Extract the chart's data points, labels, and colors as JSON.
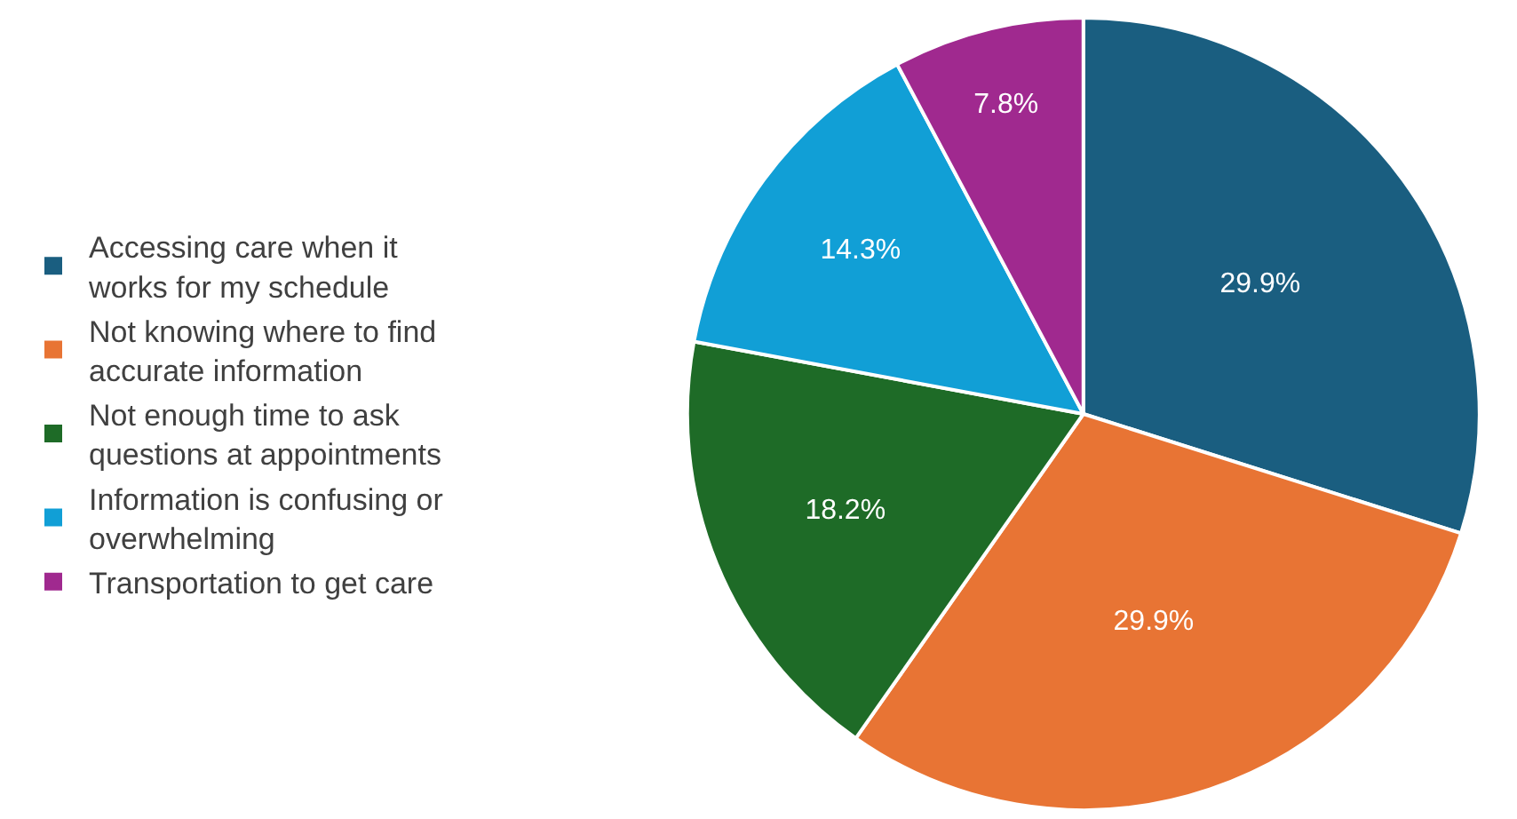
{
  "chart_data": {
    "type": "pie",
    "categories": [
      "Accessing care when it works for my schedule",
      "Not knowing where to find accurate information",
      "Not enough time to ask questions at appointments",
      "Information is confusing or overwhelming",
      "Transportation to get care"
    ],
    "values": [
      29.9,
      29.9,
      18.2,
      14.3,
      7.8
    ],
    "colors": [
      "#1a5e80",
      "#e87434",
      "#1e6b27",
      "#119fd6",
      "#a0298f"
    ],
    "value_labels": [
      "29.9%",
      "29.9%",
      "18.2%",
      "14.3%",
      "7.8%"
    ],
    "legend": "left"
  }
}
